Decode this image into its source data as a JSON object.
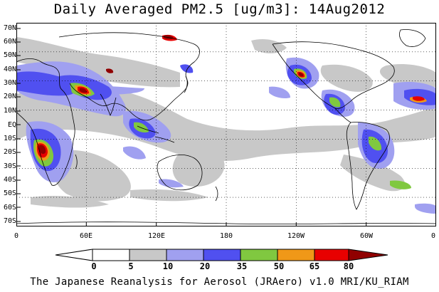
{
  "title": "Daily Averaged PM2.5 [ug/m3]: 14Aug2012",
  "y_axis_labels": [
    "70N",
    "60N",
    "50N",
    "40N",
    "30N",
    "20N",
    "10N",
    "EQ",
    "10S",
    "20S",
    "30S",
    "40S",
    "50S",
    "60S",
    "70S"
  ],
  "x_axis_labels": [
    "0",
    "60E",
    "120E",
    "180",
    "120W",
    "60W",
    "0"
  ],
  "colorbar": {
    "labels": [
      "0",
      "5",
      "10",
      "20",
      "35",
      "50",
      "65",
      "80"
    ],
    "colors": [
      "#ffffff",
      "#c8c8c8",
      "#a0a0f0",
      "#5050f0",
      "#80c840",
      "#f09818",
      "#e80000",
      "#900000"
    ]
  },
  "footer": "The Japanese Reanalysis for Aerosol (JRAero) v1.0 MRI/KU_RIAM"
}
